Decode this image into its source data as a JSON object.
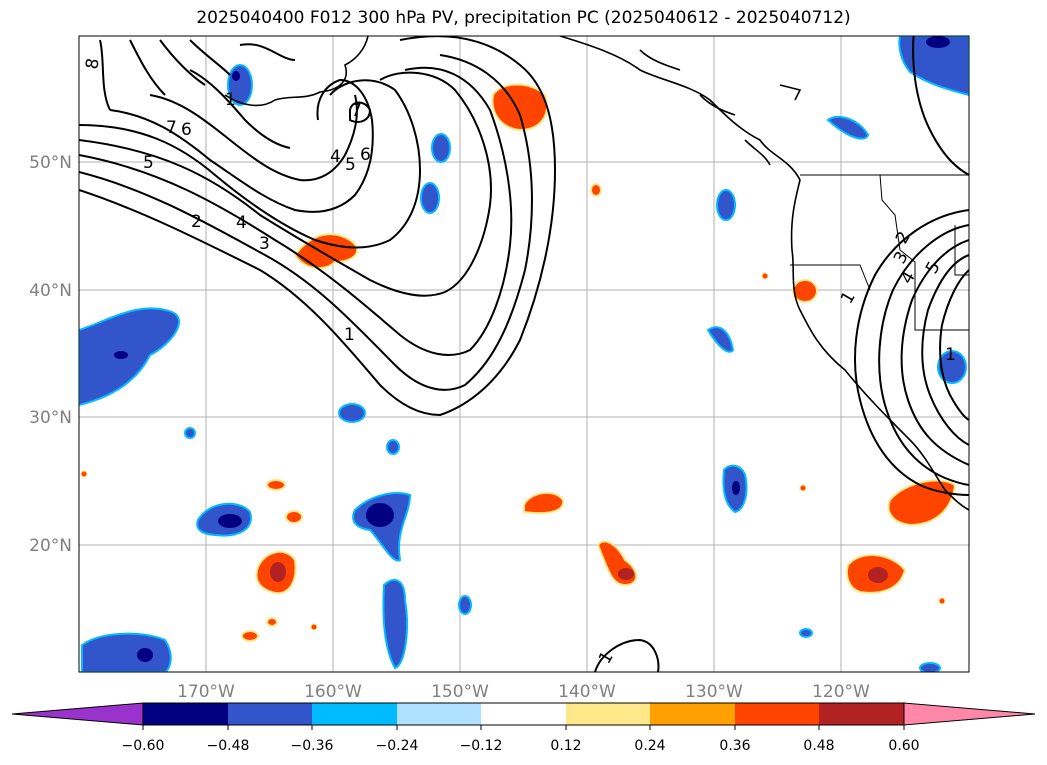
{
  "title": "2025040400 F012 300 hPa PV, precipitation PC (2025040612 - 2025040712)",
  "lat_labels": [
    "50°N",
    "40°N",
    "30°N",
    "20°N"
  ],
  "lon_labels": [
    "170°W",
    "160°W",
    "150°W",
    "140°W",
    "130°W",
    "120°W"
  ],
  "colorbar": {
    "ticks": [
      "−0.60",
      "−0.48",
      "−0.36",
      "−0.24",
      "−0.12",
      "0.12",
      "0.24",
      "0.36",
      "0.48",
      "0.60"
    ],
    "colors": [
      "#9933cc",
      "#000080",
      "#3355cc",
      "#00bbff",
      "#b0e0ff",
      "#ffffff",
      "#ffe88a",
      "#ffa000",
      "#ff4400",
      "#b22222",
      "#ff88aa"
    ]
  },
  "contour_labels": [
    "8",
    "7",
    "6",
    "5",
    "1",
    "2",
    "4",
    "3",
    "7",
    "4",
    "5",
    "6",
    "1",
    "1",
    "2",
    "3",
    "4",
    "5",
    "1",
    "1"
  ],
  "colors": {
    "negative_dark": "#000080",
    "negative_mid": "#3355cc",
    "negative_light": "#00bbff",
    "positive_mid": "#ff4400",
    "positive_dark": "#b22222",
    "positive_light": "#ffe88a"
  }
}
